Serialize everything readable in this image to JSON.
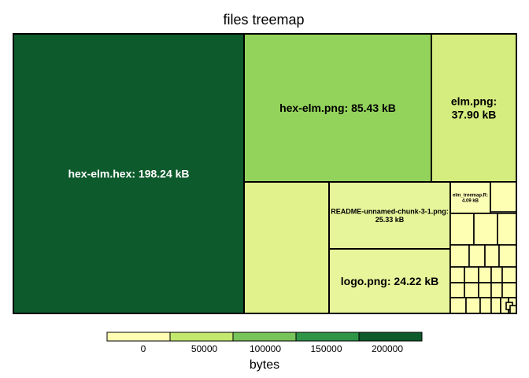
{
  "chart_data": {
    "type": "treemap",
    "title": "files treemap",
    "size_unit": "bytes",
    "tiles": [
      {
        "label": "hex-elm.hex: 198.24 kB",
        "value": 198240,
        "color": "#0d5a2c"
      },
      {
        "label": "hex-elm.png:  85.43 kB",
        "value": 85430,
        "color": "#93d35b"
      },
      {
        "label": "elm.png:",
        "label2": "37.90 kB",
        "value": 37900,
        "color": "#d5ec7e"
      },
      {
        "label": "",
        "value": 0,
        "color": "#e1f28c"
      },
      {
        "label": "README-unnamed-chunk-3-1.png:",
        "label2": "25.33 kB",
        "value": 25330,
        "color": "#e7f59a"
      },
      {
        "label": "logo.png:  24.22 kB",
        "value": 24220,
        "color": "#e8f59b"
      },
      {
        "label": "elm_treemap.R:",
        "label2": "4.09 kB",
        "value": 4090,
        "color": "#fbfeb5"
      }
    ],
    "small_tile_color": "#ffffb3",
    "legend": {
      "title": "bytes",
      "ticks": [
        "0",
        "50000",
        "100000",
        "150000",
        "200000"
      ],
      "colors": [
        "#ffffb3",
        "#c2e86e",
        "#77c55a",
        "#2e9547",
        "#0d5a2c"
      ]
    }
  }
}
